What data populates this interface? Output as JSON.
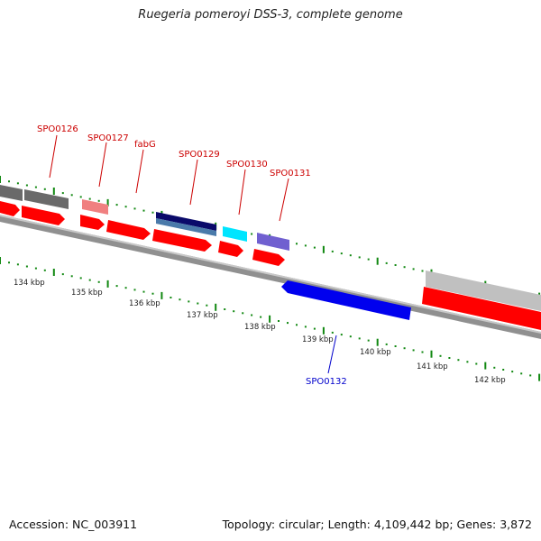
{
  "title": "Ruegeria pomeroyi DSS-3, complete genome",
  "footer": {
    "accession": "Accession: NC_003911",
    "summary": "Topology: circular; Length: 4,109,442 bp; Genes: 3,872"
  },
  "colors": {
    "cds_forward": "#ff0000",
    "cds_reverse": "#0000ee",
    "backbone": "#888888",
    "tick": "#118811"
  },
  "gene_labels": [
    {
      "name": "SPO0126",
      "strand": "forward"
    },
    {
      "name": "SPO0127",
      "strand": "forward"
    },
    {
      "name": "fabG",
      "strand": "forward"
    },
    {
      "name": "SPO0129",
      "strand": "forward"
    },
    {
      "name": "SPO0130",
      "strand": "forward"
    },
    {
      "name": "SPO0131",
      "strand": "forward"
    },
    {
      "name": "SPO0132",
      "strand": "reverse"
    }
  ],
  "kbp_labels": [
    "134 kbp",
    "135 kbp",
    "136 kbp",
    "137 kbp",
    "138 kbp",
    "139 kbp",
    "140 kbp",
    "141 kbp",
    "142 kbp"
  ]
}
